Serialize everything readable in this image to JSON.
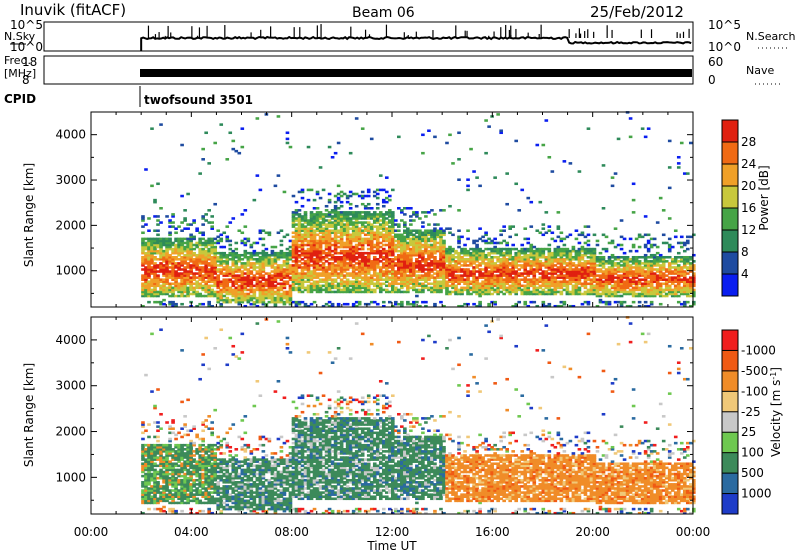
{
  "header": {
    "station": "Inuvik (fitACF)",
    "beam": "Beam 06",
    "date": "25/Feb/2012"
  },
  "top_panels": {
    "nsky_label": "N.Sky",
    "nsky_ticks": [
      "10^5",
      "10^0"
    ],
    "nsearch_label": "N.Search",
    "nsearch_ticks": [
      "10^5",
      "10^0"
    ],
    "freq_label_1": "Freq.",
    "freq_label_2": "[MHz]",
    "freq_ticks": [
      "18",
      "8"
    ],
    "nave_label": "Nave",
    "nave_ticks": [
      "60",
      "0"
    ],
    "cpid_label": "CPID",
    "cpid_value": "twofsound 3501"
  },
  "chart_data": [
    {
      "type": "heatmap",
      "name": "power",
      "ylabel": "Slant Range [km]",
      "ylim": [
        200,
        4500
      ],
      "yticks": [
        "1000",
        "2000",
        "3000",
        "4000"
      ],
      "xlim": [
        "00:00",
        "24:00"
      ],
      "colorbar": {
        "label": "Power [dB]",
        "tick_labels": [
          "4",
          "8",
          "12",
          "16",
          "20",
          "24",
          "28"
        ],
        "colors": [
          "#0a1ef0",
          "#1e4ba0",
          "#2e8a5a",
          "#46a446",
          "#c8c83c",
          "#f0a028",
          "#f06a14",
          "#e02010"
        ]
      },
      "data_start_time": "02:00"
    },
    {
      "type": "heatmap",
      "name": "velocity",
      "ylabel": "Slant Range [km]",
      "ylim": [
        200,
        4500
      ],
      "yticks": [
        "1000",
        "2000",
        "3000",
        "4000"
      ],
      "xlim": [
        "00:00",
        "24:00"
      ],
      "colorbar": {
        "label": "Velocity [m s^-1]",
        "tick_labels": [
          "1000",
          "500",
          "100",
          "25",
          "-25",
          "-100",
          "-500",
          "-1000"
        ],
        "colors": [
          "#1e3cc8",
          "#2a6aa0",
          "#3c8a5a",
          "#6ec850",
          "#c8c8c8",
          "#f0c878",
          "#f08c28",
          "#f05a14",
          "#f01e1e"
        ]
      },
      "data_start_time": "02:00"
    }
  ],
  "x_axis": {
    "ticks": [
      "00:00",
      "04:00",
      "08:00",
      "12:00",
      "16:00",
      "20:00",
      "00:00"
    ],
    "label": "Time UT"
  }
}
